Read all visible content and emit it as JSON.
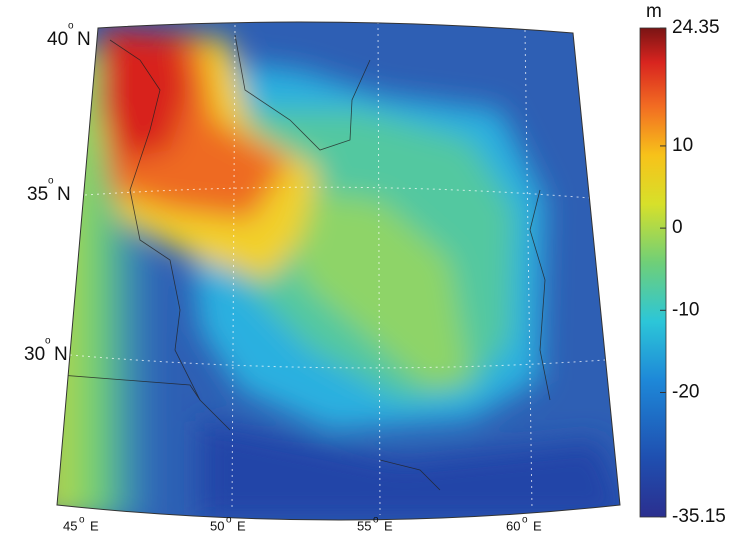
{
  "map": {
    "colorbar": {
      "unit": "m",
      "range": [
        -35.15,
        24.35
      ],
      "ticks": [
        24.35,
        10,
        0,
        -10,
        -20,
        -35.15
      ]
    },
    "degree_symbol": "o",
    "lat_labels": [
      {
        "deg": "40",
        "hemi": "N"
      },
      {
        "deg": "35",
        "hemi": "N"
      },
      {
        "deg": "30",
        "hemi": "N"
      }
    ],
    "lon_labels": [
      {
        "deg": "45",
        "hemi": "E"
      },
      {
        "deg": "50",
        "hemi": "E"
      },
      {
        "deg": "55",
        "hemi": "E"
      },
      {
        "deg": "60",
        "hemi": "E"
      }
    ]
  }
}
